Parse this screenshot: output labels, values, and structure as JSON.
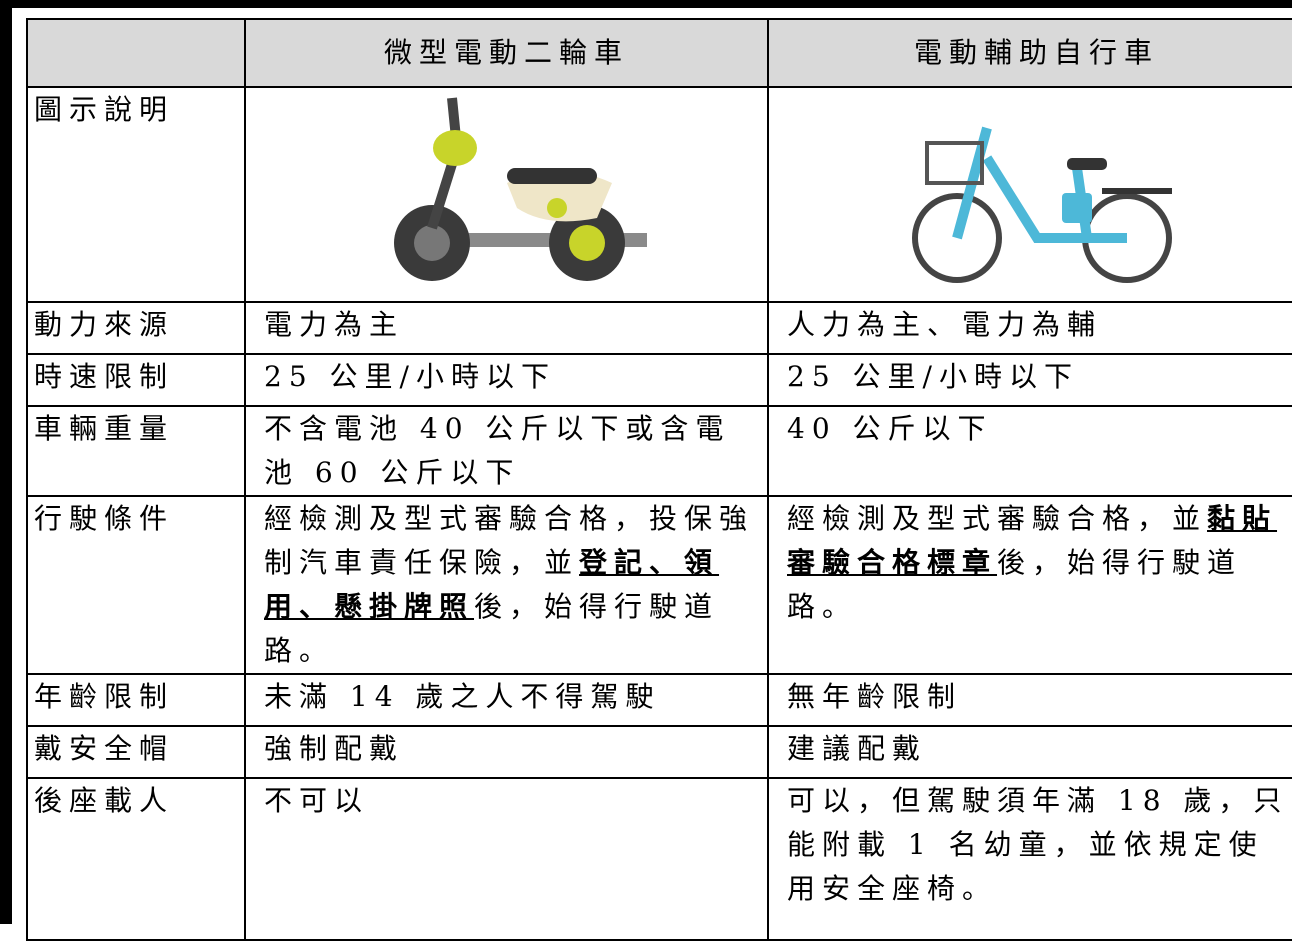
{
  "table": {
    "columns": [
      "微型電動二輪車",
      "電動輔助自行車"
    ],
    "image_row_label": "圖示說明",
    "rows": [
      {
        "label": "動力來源",
        "cells": [
          "電力為主",
          "人力為主、電力為輔"
        ]
      },
      {
        "label": "時速限制",
        "cells": [
          "25 公里/小時以下",
          "25 公里/小時以下"
        ]
      },
      {
        "label": "車輛重量",
        "cells": [
          "不含電池 40 公斤以下或含電池 60 公斤以下",
          "40 公斤以下"
        ]
      },
      {
        "label": "行駛條件",
        "cells": [
          {
            "before": "經檢測及型式審驗合格，投保強制汽車責任保險，並",
            "emphasis": "登記、領用、懸掛牌照",
            "after": "後，始得行駛道路。"
          },
          {
            "before": "經檢測及型式審驗合格，並",
            "emphasis": "黏貼審驗合格標章",
            "after": "後，始得行駛道路。"
          }
        ]
      },
      {
        "label": "年齡限制",
        "cells": [
          "未滿 14 歲之人不得駕駛",
          "無年齡限制"
        ]
      },
      {
        "label": "戴安全帽",
        "cells": [
          "強制配戴",
          "建議配戴"
        ]
      },
      {
        "label": "後座載人",
        "cells": [
          "不可以",
          "可以，但駕駛須年滿 18 歲，只能附載 1 名幼童，並依規定使用安全座椅。"
        ]
      }
    ]
  }
}
